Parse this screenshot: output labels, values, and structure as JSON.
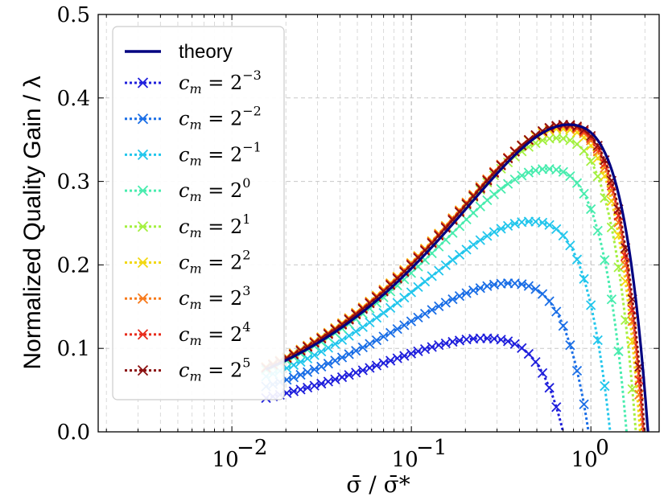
{
  "chart_data": {
    "type": "line",
    "xscale": "log",
    "xlim": [
      0.0018,
      2.4
    ],
    "ylim": [
      0.0,
      0.5
    ],
    "xlabel": "σ̄ / σ̄*",
    "ylabel": "Normalized Quality Gain / λ",
    "grid": true,
    "legend_position": "top-left",
    "x_ticks": [
      {
        "value": 0.01,
        "base": "10",
        "exp": "−2"
      },
      {
        "value": 0.1,
        "base": "10",
        "exp": "−1"
      },
      {
        "value": 1.0,
        "base": "10",
        "exp": "0"
      }
    ],
    "y_ticks": [
      {
        "value": 0.0,
        "label": "0.0"
      },
      {
        "value": 0.1,
        "label": "0.1"
      },
      {
        "value": 0.2,
        "label": "0.2"
      },
      {
        "value": 0.3,
        "label": "0.3"
      },
      {
        "value": 0.4,
        "label": "0.4"
      },
      {
        "value": 0.5,
        "label": "0.5"
      }
    ],
    "theory": {
      "name": "theory",
      "color": "#000080",
      "peak_y": 0.368
    },
    "series": [
      {
        "name": "cm=2^-3",
        "label_lhs": "c",
        "label_sub": "m",
        "label_base": "= 2",
        "label_exp": "−3",
        "color": "#1f1fdc",
        "xmax": 0.7,
        "peak": 0.112
      },
      {
        "name": "cm=2^-2",
        "label_lhs": "c",
        "label_sub": "m",
        "label_base": "= 2",
        "label_exp": "−2",
        "color": "#1a6ee6",
        "xmax": 0.97,
        "peak": 0.178
      },
      {
        "name": "cm=2^-1",
        "label_lhs": "c",
        "label_sub": "m",
        "label_base": "= 2",
        "label_exp": "−1",
        "color": "#22c6ec",
        "xmax": 1.28,
        "peak": 0.252
      },
      {
        "name": "cm=2^0",
        "label_lhs": "c",
        "label_sub": "m",
        "label_base": "= 2",
        "label_exp": "0",
        "color": "#48ecae",
        "xmax": 1.58,
        "peak": 0.315
      },
      {
        "name": "cm=2^1",
        "label_lhs": "c",
        "label_sub": "m",
        "label_base": "= 2",
        "label_exp": "1",
        "color": "#a4f040",
        "xmax": 1.78,
        "peak": 0.352
      },
      {
        "name": "cm=2^2",
        "label_lhs": "c",
        "label_sub": "m",
        "label_base": "= 2",
        "label_exp": "2",
        "color": "#f2d810",
        "xmax": 1.88,
        "peak": 0.363
      },
      {
        "name": "cm=2^3",
        "label_lhs": "c",
        "label_sub": "m",
        "label_base": "= 2",
        "label_exp": "3",
        "color": "#f77a1c",
        "xmax": 1.93,
        "peak": 0.366
      },
      {
        "name": "cm=2^4",
        "label_lhs": "c",
        "label_sub": "m",
        "label_base": "= 2",
        "label_exp": "4",
        "color": "#e82a1a",
        "xmax": 1.96,
        "peak": 0.367
      },
      {
        "name": "cm=2^5",
        "label_lhs": "c",
        "label_sub": "m",
        "label_base": "= 2",
        "label_exp": "5",
        "color": "#8a0f0f",
        "xmax": 1.99,
        "peak": 0.368
      }
    ]
  }
}
